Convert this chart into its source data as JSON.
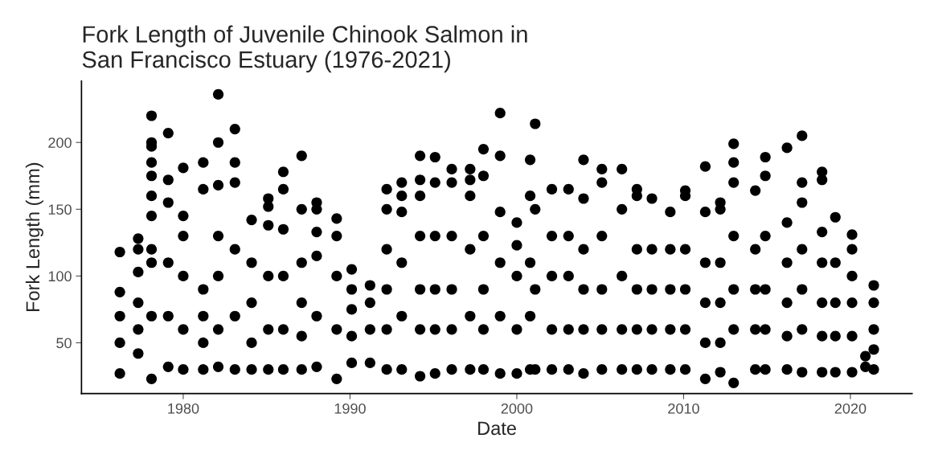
{
  "chart_data": {
    "type": "scatter",
    "title": "Fork Length of Juvenile Chinook Salmon in\nSan Francisco Estuary (1976-2021)",
    "xlabel": "Date",
    "ylabel": "Fork Length (mm)",
    "xlim": [
      1973.9,
      2023.7
    ],
    "ylim": [
      12,
      246
    ],
    "xticks": [
      1980,
      1990,
      2000,
      2010,
      2020
    ],
    "yticks": [
      50,
      100,
      150,
      200
    ],
    "grid": false,
    "marker": "circle",
    "series": [
      {
        "color": "#000000",
        "x": [
          1976.2,
          1976.2,
          1976.2,
          1976.2,
          1976.2,
          1977.3,
          1977.3,
          1977.3,
          1977.3,
          1977.3,
          1977.3,
          1978.1,
          1978.1,
          1978.1,
          1978.1,
          1978.1,
          1978.1,
          1978.1,
          1978.1,
          1978.1,
          1978.1,
          1978.1,
          1979.1,
          1979.1,
          1979.1,
          1979.1,
          1979.1,
          1979.1,
          1980.0,
          1980.0,
          1980.0,
          1980.0,
          1980.0,
          1980.0,
          1981.2,
          1981.2,
          1981.2,
          1981.2,
          1981.2,
          1981.2,
          1982.1,
          1982.1,
          1982.1,
          1982.1,
          1982.1,
          1982.1,
          1982.1,
          1983.1,
          1983.1,
          1983.1,
          1983.1,
          1983.1,
          1983.1,
          1984.1,
          1984.1,
          1984.1,
          1984.1,
          1984.1,
          1985.1,
          1985.1,
          1985.1,
          1985.1,
          1985.1,
          1985.1,
          1986.0,
          1986.0,
          1986.0,
          1986.0,
          1986.0,
          1986.0,
          1987.1,
          1987.1,
          1987.1,
          1987.1,
          1987.1,
          1987.1,
          1988.0,
          1988.0,
          1988.0,
          1988.0,
          1988.0,
          1988.0,
          1989.2,
          1989.2,
          1989.2,
          1989.2,
          1989.2,
          1990.1,
          1990.1,
          1990.1,
          1990.1,
          1990.1,
          1991.2,
          1991.2,
          1991.2,
          1991.2,
          1992.2,
          1992.2,
          1992.2,
          1992.2,
          1992.2,
          1992.2,
          1993.1,
          1993.1,
          1993.1,
          1993.1,
          1993.1,
          1993.1,
          1994.2,
          1994.2,
          1994.2,
          1994.2,
          1994.2,
          1994.2,
          1994.2,
          1995.1,
          1995.1,
          1995.1,
          1995.1,
          1995.1,
          1995.1,
          1996.1,
          1996.1,
          1996.1,
          1996.1,
          1996.1,
          1996.1,
          1997.2,
          1997.2,
          1997.2,
          1997.2,
          1997.2,
          1997.2,
          1998.0,
          1998.0,
          1998.0,
          1998.0,
          1998.0,
          1998.0,
          1999.0,
          1999.0,
          1999.0,
          1999.0,
          1999.0,
          1999.0,
          2000.0,
          2000.0,
          2000.0,
          2000.0,
          2000.0,
          2000.8,
          2000.8,
          2000.8,
          2000.8,
          2000.8,
          2001.1,
          2001.1,
          2001.1,
          2001.1,
          2002.1,
          2002.1,
          2002.1,
          2002.1,
          2002.1,
          2003.1,
          2003.1,
          2003.1,
          2003.1,
          2003.1,
          2004.0,
          2004.0,
          2004.0,
          2004.0,
          2004.0,
          2004.0,
          2005.1,
          2005.1,
          2005.1,
          2005.1,
          2005.1,
          2005.1,
          2006.3,
          2006.3,
          2006.3,
          2006.3,
          2006.3,
          2007.2,
          2007.2,
          2007.2,
          2007.2,
          2007.2,
          2007.2,
          2008.1,
          2008.1,
          2008.1,
          2008.1,
          2008.1,
          2009.2,
          2009.2,
          2009.2,
          2009.2,
          2009.2,
          2010.1,
          2010.1,
          2010.1,
          2010.1,
          2010.1,
          2010.1,
          2011.3,
          2011.3,
          2011.3,
          2011.3,
          2011.3,
          2011.3,
          2012.2,
          2012.2,
          2012.2,
          2012.2,
          2012.2,
          2012.2,
          2013.0,
          2013.0,
          2013.0,
          2013.0,
          2013.0,
          2013.0,
          2013.0,
          2014.3,
          2014.3,
          2014.3,
          2014.3,
          2014.3,
          2014.9,
          2014.9,
          2014.9,
          2014.9,
          2014.9,
          2014.9,
          2016.2,
          2016.2,
          2016.2,
          2016.2,
          2016.2,
          2016.2,
          2017.1,
          2017.1,
          2017.1,
          2017.1,
          2017.1,
          2017.1,
          2017.1,
          2018.3,
          2018.3,
          2018.3,
          2018.3,
          2018.3,
          2018.3,
          2018.3,
          2019.1,
          2019.1,
          2019.1,
          2019.1,
          2019.1,
          2020.1,
          2020.1,
          2020.1,
          2020.1,
          2020.1,
          2020.1,
          2020.9,
          2020.9,
          2021.4,
          2021.4,
          2021.4,
          2021.4,
          2021.4
        ],
        "values": [
          118,
          88,
          70,
          50,
          27,
          128,
          120,
          103,
          80,
          60,
          42,
          220,
          200,
          197,
          185,
          175,
          160,
          145,
          120,
          110,
          70,
          23,
          207,
          172,
          155,
          110,
          70,
          32,
          181,
          145,
          130,
          100,
          60,
          30,
          185,
          165,
          90,
          70,
          50,
          30,
          236,
          200,
          168,
          130,
          100,
          60,
          32,
          210,
          185,
          170,
          120,
          70,
          30,
          142,
          110,
          80,
          50,
          30,
          158,
          152,
          138,
          100,
          60,
          30,
          178,
          165,
          135,
          100,
          60,
          30,
          190,
          150,
          110,
          80,
          55,
          30,
          155,
          150,
          133,
          115,
          70,
          32,
          143,
          130,
          100,
          60,
          23,
          105,
          90,
          75,
          55,
          35,
          93,
          80,
          60,
          35,
          165,
          150,
          120,
          90,
          60,
          30,
          170,
          160,
          148,
          110,
          70,
          30,
          190,
          172,
          160,
          130,
          90,
          60,
          25,
          189,
          170,
          130,
          90,
          60,
          27,
          180,
          170,
          130,
          90,
          60,
          30,
          180,
          172,
          160,
          120,
          70,
          30,
          195,
          175,
          130,
          90,
          60,
          30,
          222,
          190,
          148,
          110,
          70,
          27,
          123,
          140,
          100,
          60,
          27,
          187,
          160,
          110,
          70,
          30,
          214,
          150,
          90,
          30,
          165,
          130,
          100,
          60,
          30,
          165,
          130,
          100,
          60,
          30,
          187,
          158,
          120,
          90,
          60,
          27,
          180,
          170,
          130,
          90,
          60,
          30,
          180,
          150,
          100,
          60,
          30,
          165,
          160,
          120,
          90,
          60,
          30,
          158,
          120,
          90,
          60,
          30,
          148,
          120,
          90,
          60,
          30,
          164,
          160,
          120,
          90,
          60,
          30,
          182,
          148,
          110,
          80,
          50,
          23,
          155,
          150,
          110,
          80,
          50,
          28,
          199,
          185,
          170,
          130,
          90,
          60,
          20,
          164,
          120,
          90,
          60,
          30,
          189,
          175,
          130,
          90,
          60,
          30,
          196,
          140,
          110,
          80,
          55,
          30,
          205,
          170,
          155,
          120,
          90,
          60,
          28,
          178,
          172,
          133,
          110,
          80,
          55,
          28,
          144,
          110,
          80,
          55,
          28,
          131,
          120,
          100,
          80,
          55,
          28,
          40,
          32,
          93,
          80,
          60,
          45,
          30
        ]
      }
    ]
  }
}
